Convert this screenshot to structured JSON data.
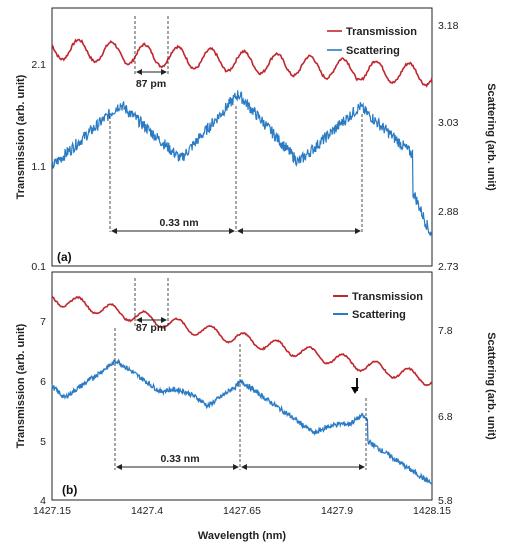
{
  "colors": {
    "transmission": "#c0262d",
    "scattering": "#2a7bc3"
  },
  "chart_data": [
    {
      "type": "line",
      "panel_label": "(a)",
      "x_range": [
        1427.15,
        1428.15
      ],
      "left_axis": {
        "label": "Transmission (arb. unit)",
        "ticks": [
          "0.1",
          "1.1",
          "2.1"
        ],
        "ylim": [
          0.1,
          2.6
        ]
      },
      "right_axis": {
        "label": "Scattering (arb. unit)",
        "ticks": [
          "2.73",
          "2.88",
          "3.03",
          "3.18"
        ],
        "ylim": [
          2.73,
          3.18
        ]
      },
      "series": [
        {
          "name": "Transmission",
          "axis": "left",
          "mean_start": 2.21,
          "mean_end": 1.95,
          "amplitude": 0.1,
          "period": 0.087,
          "phase_x": 1427.22
        },
        {
          "name": "Scattering",
          "axis": "right",
          "base": 2.76,
          "peaks": [
            1427.33,
            1427.64,
            1427.96
          ],
          "peak_values": [
            3.012,
            3.03,
            3.008
          ]
        }
      ],
      "annotations": {
        "fsr_small": {
          "text": "87 pm",
          "x1": 1427.35,
          "x2": 1427.437
        },
        "fsr_large": {
          "text": "0.33 nm",
          "x": [
            1427.33,
            1427.64,
            1427.96
          ]
        }
      },
      "legend": {
        "position": "top-right"
      }
    },
    {
      "type": "line",
      "panel_label": "(b)",
      "x_range": [
        1427.15,
        1428.15
      ],
      "x_ticks": [
        "1427.15",
        "1427.4",
        "1427.65",
        "1427.9",
        "1428.15"
      ],
      "xlabel": "Wavelength (nm)",
      "left_axis": {
        "label": "Transmission (arb. unit)",
        "ticks": [
          "4",
          "5",
          "6",
          "7"
        ],
        "ylim": [
          4,
          7.7
        ]
      },
      "right_axis": {
        "label": "Scattering (arb. unit)",
        "ticks": [
          "5.8",
          "6.8",
          "7.8"
        ],
        "ylim": [
          5.8,
          8.5
        ]
      },
      "series": [
        {
          "name": "Transmission",
          "axis": "left",
          "mean_start": 7.28,
          "mean_end": 5.95,
          "amplitude": 0.1,
          "period": 0.087,
          "phase_x": 1427.22
        },
        {
          "name": "Scattering",
          "axis": "right",
          "peaks": [
            1427.32,
            1427.65,
            1427.965
          ],
          "peak_values": [
            7.45,
            7.2,
            6.8
          ]
        }
      ],
      "annotations": {
        "fsr_small": {
          "text": "87 pm",
          "x1": 1427.35,
          "x2": 1427.437
        },
        "fsr_large": {
          "text": "0.33 nm",
          "x": [
            1427.32,
            1427.65,
            1427.965
          ]
        },
        "down_arrow": {
          "x": 1427.94
        }
      },
      "legend": {
        "position": "top-right"
      }
    }
  ]
}
